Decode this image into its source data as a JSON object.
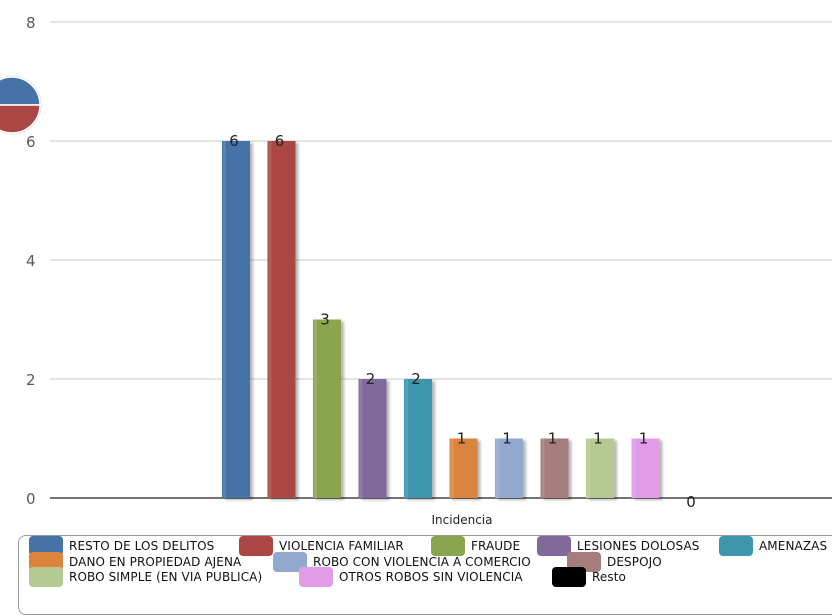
{
  "chart_data": {
    "type": "bar",
    "xlabel": "Incidencia",
    "ylabel": "",
    "ylim": [
      0,
      8
    ],
    "yticks": [
      0,
      2,
      4,
      6,
      8
    ],
    "grid": true,
    "legend_position": "bottom",
    "series": [
      {
        "name": "RESTO DE LOS DELITOS",
        "value": 6,
        "color": "#4572a7"
      },
      {
        "name": "VIOLENCIA FAMILIAR",
        "value": 6,
        "color": "#aa4643"
      },
      {
        "name": "FRAUDE",
        "value": 3,
        "color": "#89a54e"
      },
      {
        "name": "LESIONES DOLOSAS",
        "value": 2,
        "color": "#80699b"
      },
      {
        "name": "AMENAZAS",
        "value": 2,
        "color": "#3d96ae"
      },
      {
        "name": "DANO EN PROPIEDAD AJENA",
        "value": 1,
        "color": "#db843d"
      },
      {
        "name": "ROBO CON VIOLENCIA A COMERCIO",
        "value": 1,
        "color": "#92a8cd"
      },
      {
        "name": "DESPOJO",
        "value": 1,
        "color": "#a47d7c"
      },
      {
        "name": "ROBO SIMPLE (EN VIA PUBLICA)",
        "value": 1,
        "color": "#b5ca92"
      },
      {
        "name": "OTROS ROBOS SIN VIOLENCIA",
        "value": 1,
        "color": "#e29be6"
      },
      {
        "name": "Resto",
        "value": 0,
        "color": "#000000"
      }
    ]
  },
  "pie_icon_colors": [
    "#4572a7",
    "#aa4643"
  ]
}
